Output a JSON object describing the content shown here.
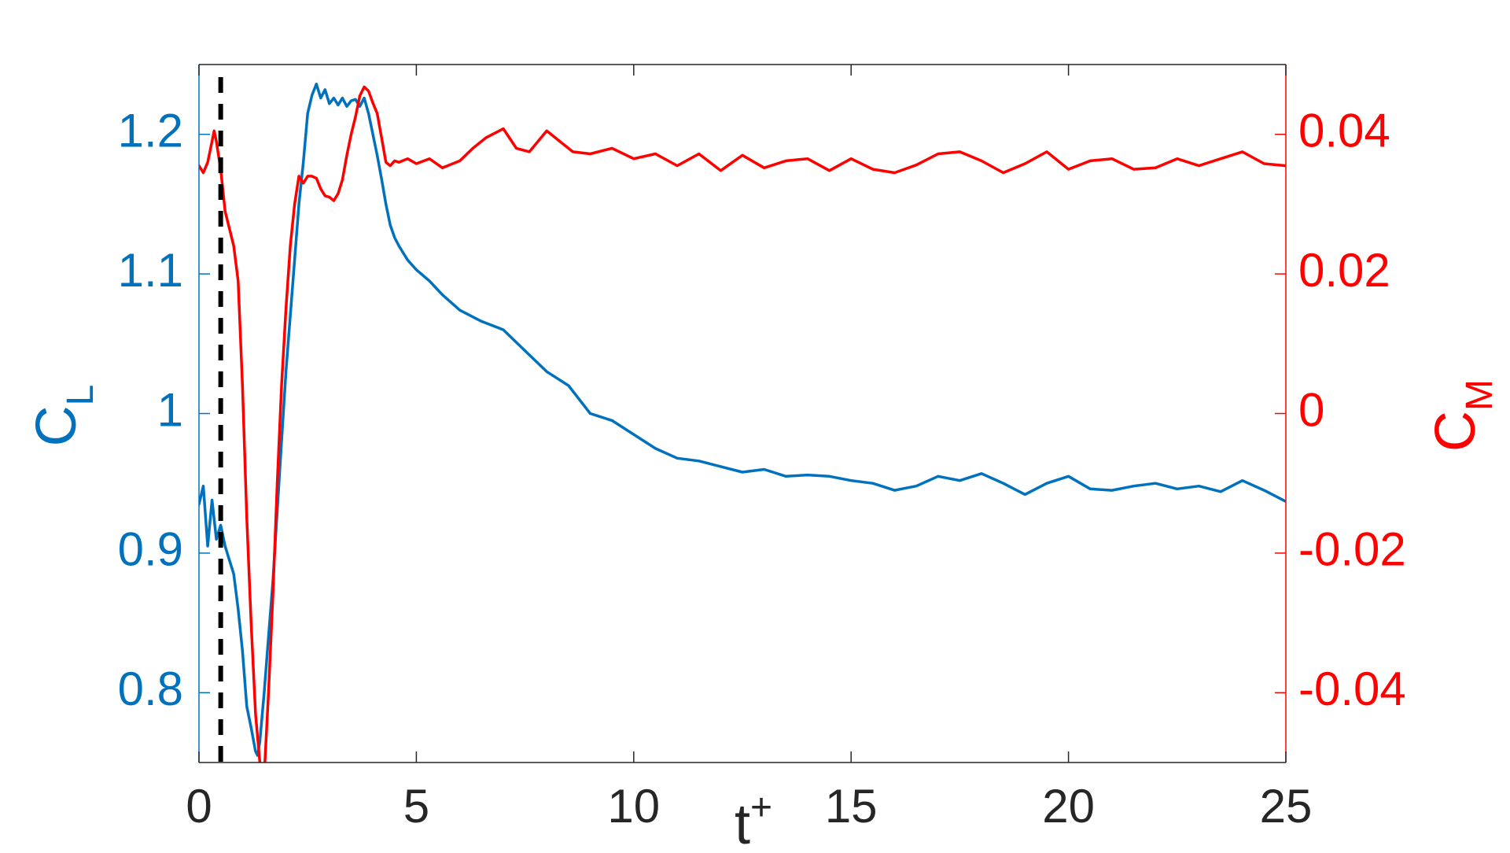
{
  "colors": {
    "left_axis": "#0072BD",
    "right_axis": "#FF0000",
    "x_axis": "#262626",
    "marker": "#000000",
    "background": "#ffffff"
  },
  "chart_data": {
    "type": "line",
    "title": "",
    "xlabel_main": "t",
    "xlabel_sup": "+",
    "ylabel_left_main": "C",
    "ylabel_left_sub": "L",
    "ylabel_right_main": "C",
    "ylabel_right_sub": "M",
    "xlim": [
      0,
      25
    ],
    "ylim_left": [
      0.75,
      1.25
    ],
    "ylim_right": [
      -0.05,
      0.05
    ],
    "x_ticks": [
      0,
      5,
      10,
      15,
      20,
      25
    ],
    "x_tick_labels": [
      "0",
      "5",
      "10",
      "15",
      "20",
      "25"
    ],
    "y_left_ticks": [
      0.8,
      0.9,
      1.0,
      1.1,
      1.2
    ],
    "y_left_tick_labels": [
      "0.8",
      "0.9",
      "1",
      "1.1",
      "1.2"
    ],
    "y_right_ticks": [
      -0.04,
      -0.02,
      0,
      0.02,
      0.04
    ],
    "y_right_tick_labels": [
      "-0.04",
      "-0.02",
      "0",
      "0.02",
      "0.04"
    ],
    "grid": false,
    "vertical_marker": {
      "x": 0.5,
      "style": "dashed"
    },
    "series": [
      {
        "axis": "left",
        "x": [
          0,
          0.1,
          0.2,
          0.3,
          0.4,
          0.5,
          0.6,
          0.7,
          0.8,
          0.9,
          1.0,
          1.1,
          1.2,
          1.3,
          1.35,
          1.4,
          1.5,
          1.6,
          1.7,
          1.8,
          1.9,
          2.0,
          2.1,
          2.2,
          2.3,
          2.4,
          2.5,
          2.6,
          2.7,
          2.8,
          2.9,
          3.0,
          3.1,
          3.2,
          3.3,
          3.4,
          3.5,
          3.6,
          3.7,
          3.8,
          3.9,
          4.0,
          4.1,
          4.2,
          4.3,
          4.4,
          4.5,
          4.6,
          4.8,
          5.0,
          5.3,
          5.6,
          6.0,
          6.5,
          7.0,
          7.5,
          8.0,
          8.5,
          9.0,
          9.5,
          10.0,
          10.5,
          11.0,
          11.5,
          12.0,
          12.5,
          13.0,
          13.5,
          14.0,
          14.5,
          15.0,
          15.5,
          16.0,
          16.5,
          17.0,
          17.5,
          18.0,
          18.5,
          19.0,
          19.5,
          20.0,
          20.5,
          21.0,
          21.5,
          22.0,
          22.5,
          23.0,
          23.5,
          24.0,
          24.5,
          25.0
        ],
        "values": [
          0.935,
          0.948,
          0.905,
          0.938,
          0.91,
          0.92,
          0.905,
          0.895,
          0.885,
          0.86,
          0.83,
          0.79,
          0.775,
          0.758,
          0.755,
          0.765,
          0.8,
          0.84,
          0.88,
          0.93,
          0.98,
          1.03,
          1.07,
          1.11,
          1.15,
          1.18,
          1.215,
          1.228,
          1.236,
          1.226,
          1.232,
          1.222,
          1.226,
          1.221,
          1.226,
          1.22,
          1.224,
          1.225,
          1.22,
          1.226,
          1.215,
          1.2,
          1.185,
          1.168,
          1.15,
          1.135,
          1.126,
          1.12,
          1.11,
          1.103,
          1.095,
          1.085,
          1.074,
          1.066,
          1.06,
          1.045,
          1.03,
          1.02,
          1.0,
          0.995,
          0.985,
          0.975,
          0.968,
          0.966,
          0.962,
          0.958,
          0.96,
          0.955,
          0.956,
          0.955,
          0.952,
          0.95,
          0.945,
          0.948,
          0.955,
          0.952,
          0.957,
          0.95,
          0.942,
          0.95,
          0.955,
          0.946,
          0.945,
          0.948,
          0.95,
          0.946,
          0.948,
          0.944,
          0.952,
          0.945,
          0.937
        ]
      },
      {
        "axis": "right",
        "x": [
          0,
          0.1,
          0.2,
          0.3,
          0.35,
          0.4,
          0.5,
          0.6,
          0.7,
          0.8,
          0.9,
          1.0,
          1.1,
          1.2,
          1.3,
          1.4,
          1.5,
          1.6,
          1.7,
          1.8,
          1.9,
          2.0,
          2.1,
          2.2,
          2.3,
          2.4,
          2.5,
          2.6,
          2.7,
          2.8,
          2.9,
          3.0,
          3.1,
          3.2,
          3.3,
          3.4,
          3.5,
          3.6,
          3.7,
          3.8,
          3.9,
          4.0,
          4.1,
          4.2,
          4.3,
          4.4,
          4.5,
          4.6,
          4.8,
          5.0,
          5.3,
          5.6,
          6.0,
          6.3,
          6.6,
          7.0,
          7.3,
          7.6,
          8.0,
          8.3,
          8.6,
          9.0,
          9.5,
          10.0,
          10.5,
          11.0,
          11.5,
          12.0,
          12.5,
          13.0,
          13.5,
          14.0,
          14.5,
          15.0,
          15.5,
          16.0,
          16.5,
          17.0,
          17.5,
          18.0,
          18.5,
          19.0,
          19.5,
          20.0,
          20.5,
          21.0,
          21.5,
          22.0,
          22.5,
          23.0,
          23.5,
          24.0,
          24.5,
          25.0
        ],
        "values": [
          0.0355,
          0.0345,
          0.036,
          0.039,
          0.0405,
          0.039,
          0.035,
          0.029,
          0.0265,
          0.024,
          0.019,
          0.004,
          -0.015,
          -0.03,
          -0.043,
          -0.05,
          -0.052,
          -0.04,
          -0.026,
          -0.01,
          0.004,
          0.015,
          0.024,
          0.03,
          0.034,
          0.033,
          0.034,
          0.034,
          0.0337,
          0.0322,
          0.0312,
          0.031,
          0.0305,
          0.0315,
          0.0335,
          0.037,
          0.04,
          0.0425,
          0.0455,
          0.0468,
          0.0462,
          0.0445,
          0.043,
          0.0395,
          0.036,
          0.0355,
          0.0362,
          0.036,
          0.0365,
          0.0358,
          0.0365,
          0.0352,
          0.0362,
          0.038,
          0.0395,
          0.0408,
          0.038,
          0.0375,
          0.0405,
          0.039,
          0.0375,
          0.0372,
          0.038,
          0.0365,
          0.0372,
          0.0355,
          0.0372,
          0.0348,
          0.037,
          0.0352,
          0.0362,
          0.0365,
          0.0348,
          0.0365,
          0.035,
          0.0345,
          0.0356,
          0.0372,
          0.0375,
          0.0362,
          0.0345,
          0.0358,
          0.0375,
          0.035,
          0.0362,
          0.0365,
          0.035,
          0.0352,
          0.0365,
          0.0355,
          0.0365,
          0.0375,
          0.0358,
          0.0355
        ]
      }
    ]
  }
}
